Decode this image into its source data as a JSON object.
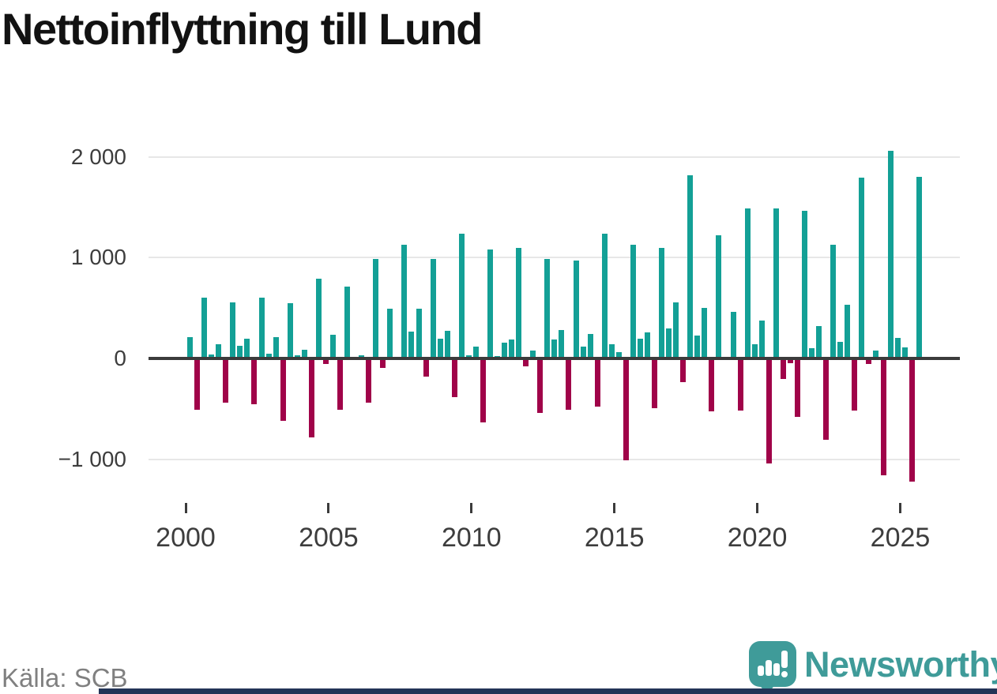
{
  "brand": {
    "name": "Newsworthy"
  },
  "colors": {
    "positive": "#13a096",
    "negative": "#a00349",
    "grid": "#e7e7e7",
    "axis": "#3b3b3b",
    "title": "#121212",
    "source": "#808080",
    "logo_teal": "#3f9b99",
    "footer_navy": "#233457"
  },
  "chart_data": {
    "type": "bar",
    "title": "Nettoinflyttning till Lund",
    "source": "Källa: SCB",
    "frequency": "quarterly",
    "start_period": "2000 Q1",
    "end_period": "2025 Q3",
    "ylabel": "",
    "xlabel": "",
    "grid": "horizontal",
    "legend": "none",
    "y_axis": {
      "tick_values": [
        2000,
        1000,
        0,
        -1000
      ],
      "tick_labels": [
        "2 000",
        "1 000",
        "0",
        "−1 000"
      ]
    },
    "x_axis": {
      "tick_years": [
        2000,
        2005,
        2010,
        2015,
        2020,
        2025
      ],
      "tick_labels": [
        "2000",
        "2005",
        "2010",
        "2015",
        "2020",
        "2025"
      ]
    },
    "values_by_year": [
      {
        "year": 2000,
        "q": [
          210,
          -510,
          600,
          40
        ]
      },
      {
        "year": 2001,
        "q": [
          145,
          -435,
          555,
          125
        ]
      },
      {
        "year": 2002,
        "q": [
          200,
          -450,
          605,
          50
        ]
      },
      {
        "year": 2003,
        "q": [
          215,
          -620,
          545,
          30
        ]
      },
      {
        "year": 2004,
        "q": [
          85,
          -785,
          790,
          -55
        ]
      },
      {
        "year": 2005,
        "q": [
          235,
          -505,
          710,
          5
        ]
      },
      {
        "year": 2006,
        "q": [
          35,
          -435,
          985,
          -90
        ]
      },
      {
        "year": 2007,
        "q": [
          495,
          -10,
          1130,
          270
        ]
      },
      {
        "year": 2008,
        "q": [
          490,
          -180,
          985,
          200
        ]
      },
      {
        "year": 2009,
        "q": [
          275,
          -385,
          1240,
          35
        ]
      },
      {
        "year": 2010,
        "q": [
          120,
          -630,
          1080,
          25
        ]
      },
      {
        "year": 2011,
        "q": [
          160,
          190,
          1100,
          -75
        ]
      },
      {
        "year": 2012,
        "q": [
          75,
          -540,
          985,
          185
        ]
      },
      {
        "year": 2013,
        "q": [
          280,
          -505,
          975,
          115
        ]
      },
      {
        "year": 2014,
        "q": [
          245,
          -475,
          1240,
          140
        ]
      },
      {
        "year": 2015,
        "q": [
          65,
          -1010,
          1125,
          200
        ]
      },
      {
        "year": 2016,
        "q": [
          260,
          -490,
          1100,
          300
        ]
      },
      {
        "year": 2017,
        "q": [
          560,
          -235,
          1820,
          225
        ]
      },
      {
        "year": 2018,
        "q": [
          505,
          -525,
          1220,
          10
        ]
      },
      {
        "year": 2019,
        "q": [
          460,
          -520,
          1490,
          140
        ]
      },
      {
        "year": 2020,
        "q": [
          375,
          -1040,
          1485,
          -200
        ]
      },
      {
        "year": 2021,
        "q": [
          -45,
          -580,
          1465,
          105
        ]
      },
      {
        "year": 2022,
        "q": [
          320,
          -810,
          1130,
          165
        ]
      },
      {
        "year": 2023,
        "q": [
          530,
          -520,
          1790,
          -55
        ]
      },
      {
        "year": 2024,
        "q": [
          80,
          -1160,
          2060,
          205
        ]
      },
      {
        "year": 2025,
        "q": [
          110,
          -1220,
          1800
        ]
      }
    ]
  }
}
